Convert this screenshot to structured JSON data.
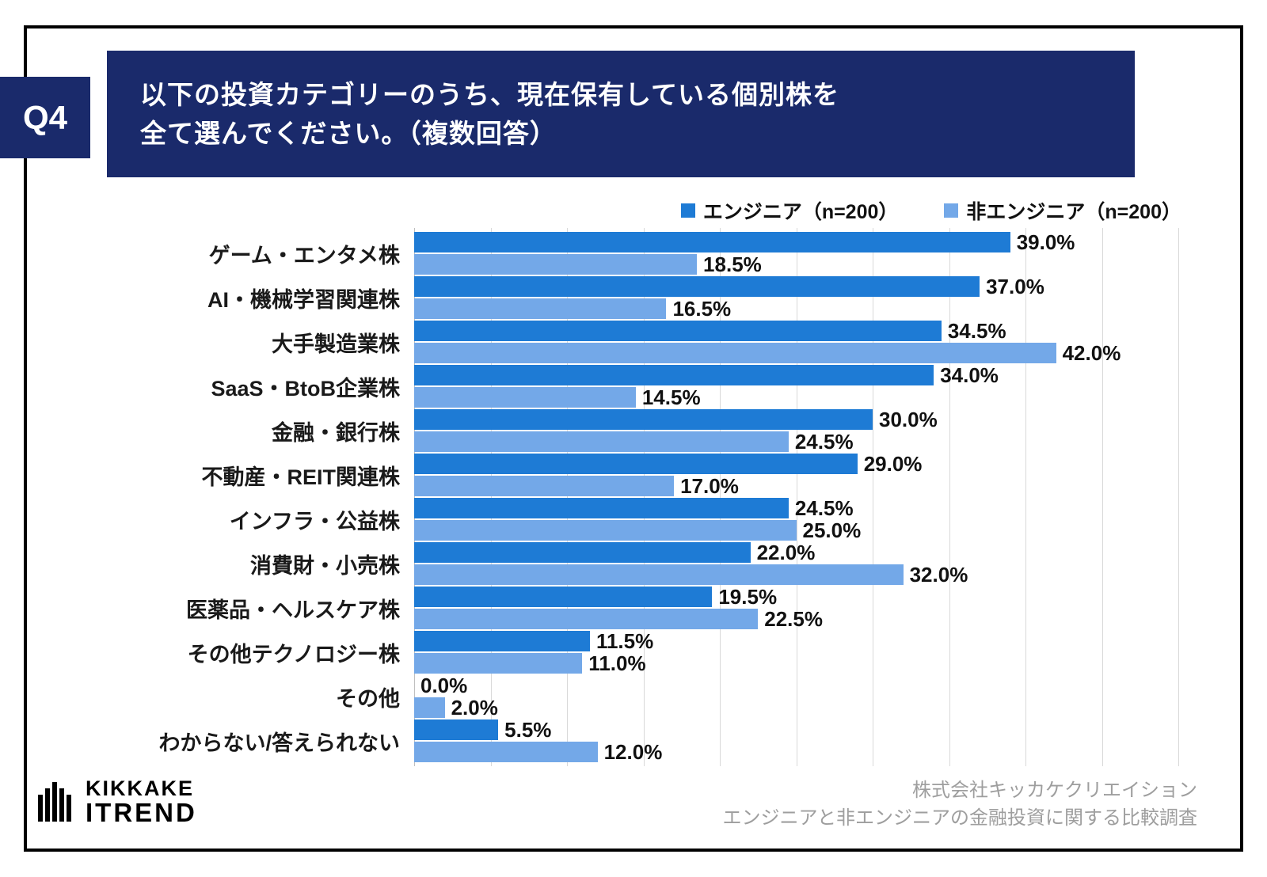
{
  "header": {
    "question_number": "Q4",
    "title_line1": "以下の投資カテゴリーのうち、現在保有している個別株を",
    "title_line2": "全て選んでください。（複数回答）"
  },
  "chart_data": {
    "type": "bar",
    "orientation": "horizontal",
    "title": "以下の投資カテゴリーのうち、現在保有している個別株を全て選んでください。（複数回答）",
    "categories": [
      "ゲーム・エンタメ株",
      "AI・機械学習関連株",
      "大手製造業株",
      "SaaS・BtoB企業株",
      "金融・銀行株",
      "不動産・REIT関連株",
      "インフラ・公益株",
      "消費財・小売株",
      "医薬品・ヘルスケア株",
      "その他テクノロジー株",
      "その他",
      "わからない/答えられない"
    ],
    "series": [
      {
        "name": "エンジニア（n=200）",
        "color": "#1E7BD5",
        "values": [
          39.0,
          37.0,
          34.5,
          34.0,
          30.0,
          29.0,
          24.5,
          22.0,
          19.5,
          11.5,
          0.0,
          5.5
        ]
      },
      {
        "name": "非エンジニア（n=200）",
        "color": "#73A8E8",
        "values": [
          18.5,
          16.5,
          42.0,
          14.5,
          24.5,
          17.0,
          25.0,
          32.0,
          22.5,
          11.0,
          2.0,
          12.0
        ]
      }
    ],
    "value_suffix": "%",
    "xlim": [
      0,
      50
    ],
    "gridline_step": 5,
    "grid": true,
    "legend_position": "top"
  },
  "footer": {
    "logo_line1": "KIKKAKE",
    "logo_line2": "ITREND",
    "credit_line1": "株式会社キッカケクリエイション",
    "credit_line2": "エンジニアと非エンジニアの金融投資に関する比較調査"
  }
}
